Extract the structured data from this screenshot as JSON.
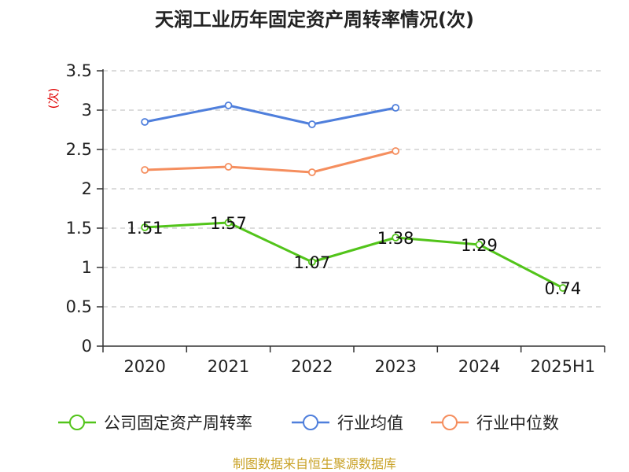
{
  "title": "天润工业历年固定资产周转率情况(次)",
  "source": "制图数据来自恒生聚源数据库",
  "chart_data": {
    "type": "line",
    "title": "天润工业历年固定资产周转率情况(次)",
    "ylabel": "(次)",
    "xlabel": "",
    "categories": [
      "2020",
      "2021",
      "2022",
      "2023",
      "2024",
      "2025H1"
    ],
    "ylim": [
      0,
      3.5
    ],
    "yticks": [
      "0",
      "0.5",
      "1",
      "1.5",
      "2",
      "2.5",
      "3",
      "3.5"
    ],
    "grid": true,
    "legend_position": "bottom",
    "series": [
      {
        "name": "公司固定资产周转率",
        "color": "#52c41a",
        "values": [
          1.51,
          1.57,
          1.07,
          1.38,
          1.29,
          0.74
        ],
        "labels": [
          "1.51",
          "1.57",
          "1.07",
          "1.38",
          "1.29",
          "0.74"
        ],
        "show_labels": true
      },
      {
        "name": "行业均值",
        "color": "#4f7fdc",
        "values": [
          2.85,
          3.06,
          2.82,
          3.03,
          null,
          null
        ],
        "show_labels": false
      },
      {
        "name": "行业中位数",
        "color": "#f58e5e",
        "values": [
          2.24,
          2.28,
          2.21,
          2.48,
          null,
          null
        ],
        "show_labels": false
      }
    ]
  }
}
